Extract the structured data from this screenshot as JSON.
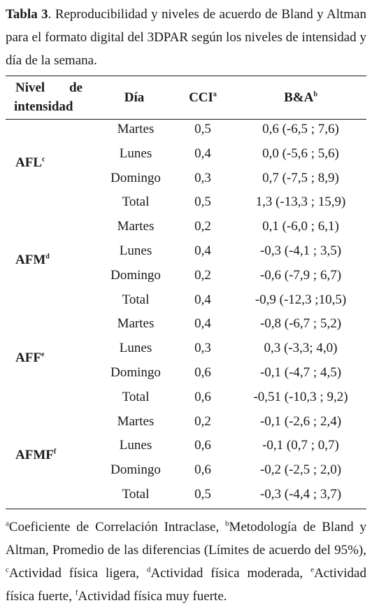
{
  "caption": {
    "label": "Tabla 3",
    "text": ". Reproducibilidad y niveles de acuerdo de Bland y Altman para el formato digital del 3DPAR según los niveles de intensidad y día de la semana."
  },
  "table": {
    "headers": {
      "nivel_line1": "Nivel de",
      "nivel_line2": "intensidad",
      "dia": "Día",
      "cci": "CCI",
      "cci_sup": "a",
      "ba": "B&A",
      "ba_sup": "b"
    },
    "groups": [
      {
        "label": "AFL",
        "sup": "c",
        "rows": [
          {
            "dia": "Martes",
            "cci": "0,5",
            "ba": "0,6 (-6,5 ; 7,6)"
          },
          {
            "dia": "Lunes",
            "cci": "0,4",
            "ba": "0,0 (-5,6 ; 5,6)"
          },
          {
            "dia": "Domingo",
            "cci": "0,3",
            "ba": "0,7 (-7,5 ; 8,9)"
          },
          {
            "dia": "Total",
            "cci": "0,5",
            "ba": "1,3 (-13,3 ; 15,9)"
          }
        ]
      },
      {
        "label": "AFM",
        "sup": "d",
        "rows": [
          {
            "dia": "Martes",
            "cci": "0,2",
            "ba": "0,1 (-6,0 ; 6,1)"
          },
          {
            "dia": "Lunes",
            "cci": "0,4",
            "ba": "-0,3 (-4,1 ; 3,5)"
          },
          {
            "dia": "Domingo",
            "cci": "0,2",
            "ba": "-0,6 (-7,9 ; 6,7)"
          },
          {
            "dia": "Total",
            "cci": "0,4",
            "ba": "-0,9 (-12,3 ;10,5)"
          }
        ]
      },
      {
        "label": "AFF",
        "sup": "e",
        "rows": [
          {
            "dia": "Martes",
            "cci": "0,4",
            "ba": "-0,8 (-6,7 ; 5,2)"
          },
          {
            "dia": "Lunes",
            "cci": "0,3",
            "ba": "0,3 (-3,3; 4,0)"
          },
          {
            "dia": "Domingo",
            "cci": "0,6",
            "ba": "-0,1 (-4,7 ; 4,5)"
          },
          {
            "dia": "Total",
            "cci": "0,6",
            "ba": "-0,51 (-10,3 ; 9,2)"
          }
        ]
      },
      {
        "label": "AFMF",
        "sup": "f",
        "rows": [
          {
            "dia": "Martes",
            "cci": "0,2",
            "ba": "-0,1 (-2,6 ; 2,4)"
          },
          {
            "dia": "Lunes",
            "cci": "0,6",
            "ba": "-0,1 (0,7 ; 0,7)"
          },
          {
            "dia": "Domingo",
            "cci": "0,6",
            "ba": "-0,2 (-2,5 ; 2,0)"
          },
          {
            "dia": "Total",
            "cci": "0,5",
            "ba": "-0,3 (-4,4 ; 3,7)"
          }
        ]
      }
    ]
  },
  "footnote": {
    "parts": [
      {
        "sup": "a",
        "text": "Coeficiente de Correlación Intraclase, "
      },
      {
        "sup": "b",
        "text": "Metodología de Bland y Altman, Promedio de las diferencias (Límites de acuerdo del 95%), "
      },
      {
        "sup": "c",
        "text": "Actividad física ligera, "
      },
      {
        "sup": "d",
        "text": "Actividad física moderada, "
      },
      {
        "sup": "e",
        "text": "Actividad física fuerte, "
      },
      {
        "sup": "f",
        "text": "Actividad física muy fuerte."
      }
    ]
  }
}
